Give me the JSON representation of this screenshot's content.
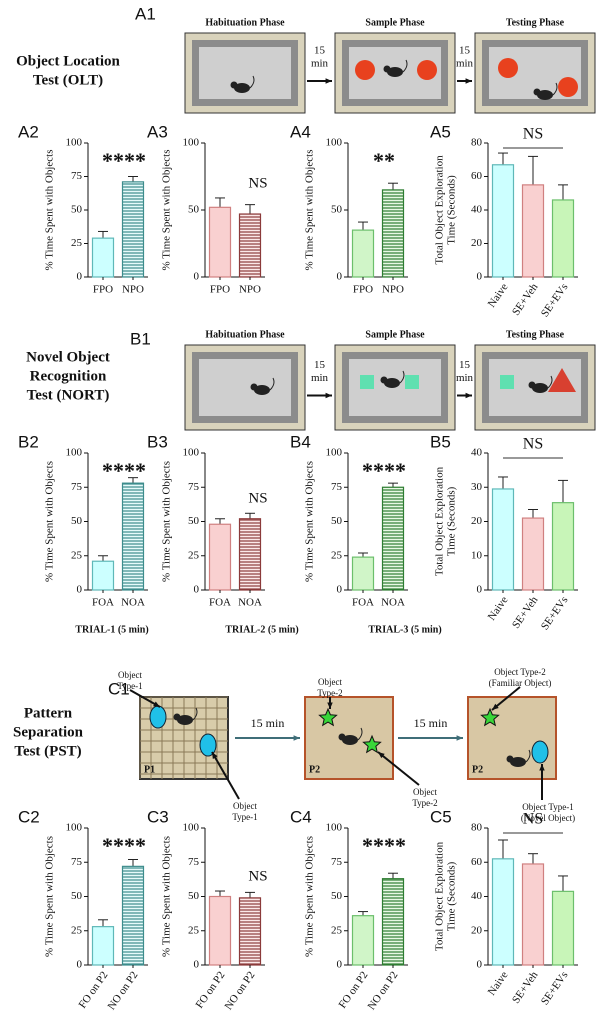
{
  "diagrams": [
    {
      "panel": "A1",
      "test_name": [
        "Object Location",
        "Test (OLT)"
      ],
      "phases": [
        "Habituation Phase",
        "Sample Phase",
        "Testing Phase"
      ],
      "intervals": [
        [
          "15",
          "min"
        ],
        [
          "15",
          "min"
        ]
      ]
    },
    {
      "panel": "B1",
      "test_name": [
        "Novel Object",
        "Recognition",
        "Test (NORT)"
      ],
      "phases": [
        "Habituation Phase",
        "Sample Phase",
        "Testing Phase"
      ],
      "intervals": [
        [
          "15",
          "min"
        ],
        [
          "15",
          "min"
        ]
      ]
    },
    {
      "panel": "C1",
      "test_name": [
        "Pattern",
        "Separation",
        "Test (PST)"
      ],
      "intervals": [
        [
          "15 min"
        ],
        [
          "15 min"
        ]
      ],
      "arena_labels": [
        "P1",
        "P2",
        "P2"
      ],
      "object_labels": [
        [
          "Object",
          "Type-1"
        ],
        [
          "Object",
          "Type-1"
        ],
        [
          "Object",
          "Type-2"
        ],
        [
          "Object",
          "Type-2"
        ],
        [
          "Object Type-2",
          "(Familiar Object)"
        ],
        [
          "Object Type-1",
          "(Novel Object)"
        ]
      ]
    }
  ],
  "trials": [
    "TRIAL-1 (5 min)",
    "TRIAL-2 (5 min)",
    "TRIAL-3 (5 min)"
  ],
  "chart_data": [
    {
      "type": "bar",
      "panel": "A2",
      "ylabel": [
        "% Time Spent with Objects"
      ],
      "categories": [
        "FPO",
        "NPO"
      ],
      "values": [
        29,
        71
      ],
      "errors": [
        5,
        4
      ],
      "colors": [
        "#ccffff",
        "#e6fafa"
      ],
      "edge_colors": [
        "#5fb8b8",
        "#3d8c8c"
      ],
      "hatch": [
        false,
        true
      ],
      "ylim": [
        0,
        100
      ],
      "yticks": [
        0,
        25,
        50,
        75,
        100
      ],
      "annotation": "****"
    },
    {
      "type": "bar",
      "panel": "A3",
      "ylabel": [
        "% Time Spent with Objects"
      ],
      "categories": [
        "FPO",
        "NPO"
      ],
      "values": [
        52,
        47
      ],
      "errors": [
        7,
        7
      ],
      "colors": [
        "#f9d0d0",
        "#fbe8e8"
      ],
      "edge_colors": [
        "#d08080",
        "#8b3a3a"
      ],
      "hatch": [
        false,
        true
      ],
      "ylim": [
        0,
        100
      ],
      "yticks": [
        0,
        50,
        100
      ],
      "annotation": "NS"
    },
    {
      "type": "bar",
      "panel": "A4",
      "ylabel": [
        "% Time Spent with Objects"
      ],
      "categories": [
        "FPO",
        "NPO"
      ],
      "values": [
        35,
        65
      ],
      "errors": [
        6,
        5
      ],
      "colors": [
        "#d0f5c8",
        "#e8f8e4"
      ],
      "edge_colors": [
        "#6cbf6c",
        "#2e7d32"
      ],
      "hatch": [
        false,
        true
      ],
      "ylim": [
        0,
        100
      ],
      "yticks": [
        0,
        50,
        100
      ],
      "annotation": "**"
    },
    {
      "type": "bar",
      "panel": "A5",
      "ylabel": [
        "Total Object Exploration",
        "Time (Seconds)"
      ],
      "categories": [
        "Naive",
        "SE+Veh",
        "SE+EVs"
      ],
      "values": [
        67,
        55,
        46
      ],
      "errors": [
        7,
        17,
        9
      ],
      "colors": [
        "#ccffff",
        "#f9d0d0",
        "#c8f5b8"
      ],
      "edge_colors": [
        "#5fb8b8",
        "#d08080",
        "#6cbf6c"
      ],
      "hatch": [
        false,
        false,
        false
      ],
      "ylim": [
        0,
        80
      ],
      "yticks": [
        0,
        20,
        40,
        60,
        80
      ],
      "annotation": "NS",
      "bracket": true
    },
    {
      "type": "bar",
      "panel": "B2",
      "ylabel": [
        "% Time Spent with Objects"
      ],
      "categories": [
        "FOA",
        "NOA"
      ],
      "values": [
        21,
        78
      ],
      "errors": [
        4,
        4
      ],
      "colors": [
        "#ccffff",
        "#e6fafa"
      ],
      "edge_colors": [
        "#5fb8b8",
        "#3d8c8c"
      ],
      "hatch": [
        false,
        true
      ],
      "ylim": [
        0,
        100
      ],
      "yticks": [
        0,
        25,
        50,
        75,
        100
      ],
      "annotation": "****"
    },
    {
      "type": "bar",
      "panel": "B3",
      "ylabel": [
        "% Time Spent with Objects"
      ],
      "categories": [
        "FOA",
        "NOA"
      ],
      "values": [
        48,
        52
      ],
      "errors": [
        4,
        4
      ],
      "colors": [
        "#f9d0d0",
        "#fbe8e8"
      ],
      "edge_colors": [
        "#d08080",
        "#8b3a3a"
      ],
      "hatch": [
        false,
        true
      ],
      "ylim": [
        0,
        100
      ],
      "yticks": [
        0,
        25,
        50,
        75,
        100
      ],
      "annotation": "NS"
    },
    {
      "type": "bar",
      "panel": "B4",
      "ylabel": [
        "% Time Spent with Objects"
      ],
      "categories": [
        "FOA",
        "NOA"
      ],
      "values": [
        24,
        75
      ],
      "errors": [
        3,
        3
      ],
      "colors": [
        "#d0f5c8",
        "#e8f8e4"
      ],
      "edge_colors": [
        "#6cbf6c",
        "#2e7d32"
      ],
      "hatch": [
        false,
        true
      ],
      "ylim": [
        0,
        100
      ],
      "yticks": [
        0,
        25,
        50,
        75,
        100
      ],
      "annotation": "****"
    },
    {
      "type": "bar",
      "panel": "B5",
      "ylabel": [
        "Total Object Exploration",
        "Time (Seconds)"
      ],
      "categories": [
        "Naive",
        "SE+Veh",
        "SE+EVs"
      ],
      "values": [
        29.5,
        21,
        25.5
      ],
      "errors": [
        3.5,
        2.5,
        6.5
      ],
      "colors": [
        "#ccffff",
        "#f9d0d0",
        "#c8f5b8"
      ],
      "edge_colors": [
        "#5fb8b8",
        "#d08080",
        "#6cbf6c"
      ],
      "hatch": [
        false,
        false,
        false
      ],
      "ylim": [
        0,
        40
      ],
      "yticks": [
        0,
        10,
        20,
        30,
        40
      ],
      "annotation": "NS",
      "bracket": true
    },
    {
      "type": "bar",
      "panel": "C2",
      "ylabel": [
        "% Time Spent with Objects"
      ],
      "categories": [
        "FO on P2",
        "NO on P2"
      ],
      "values": [
        28,
        72
      ],
      "errors": [
        5,
        5
      ],
      "colors": [
        "#ccffff",
        "#e6fafa"
      ],
      "edge_colors": [
        "#5fb8b8",
        "#3d8c8c"
      ],
      "hatch": [
        false,
        true
      ],
      "ylim": [
        0,
        100
      ],
      "yticks": [
        0,
        25,
        50,
        75,
        100
      ],
      "annotation": "****"
    },
    {
      "type": "bar",
      "panel": "C3",
      "ylabel": [
        "% Time Spent with Objects"
      ],
      "categories": [
        "FO on P2",
        "NO on P2"
      ],
      "values": [
        50,
        49
      ],
      "errors": [
        4,
        4
      ],
      "colors": [
        "#f9d0d0",
        "#fbe8e8"
      ],
      "edge_colors": [
        "#d08080",
        "#8b3a3a"
      ],
      "hatch": [
        false,
        true
      ],
      "ylim": [
        0,
        100
      ],
      "yticks": [
        0,
        25,
        50,
        75,
        100
      ],
      "annotation": "NS"
    },
    {
      "type": "bar",
      "panel": "C4",
      "ylabel": [
        "% Time Spent with Objects"
      ],
      "categories": [
        "FO on P2",
        "NO on P2"
      ],
      "values": [
        36,
        63
      ],
      "errors": [
        3,
        4
      ],
      "colors": [
        "#d0f5c8",
        "#e8f8e4"
      ],
      "edge_colors": [
        "#6cbf6c",
        "#2e7d32"
      ],
      "hatch": [
        false,
        true
      ],
      "ylim": [
        0,
        100
      ],
      "yticks": [
        0,
        25,
        50,
        75,
        100
      ],
      "annotation": "****"
    },
    {
      "type": "bar",
      "panel": "C5",
      "ylabel": [
        "Total Object Exploration",
        "Time (Seconds)"
      ],
      "categories": [
        "Naive",
        "SE+Veh",
        "SE+EVs"
      ],
      "values": [
        62,
        59,
        43
      ],
      "errors": [
        11,
        6,
        9
      ],
      "colors": [
        "#ccffff",
        "#f9d0d0",
        "#c8f5b8"
      ],
      "edge_colors": [
        "#5fb8b8",
        "#d08080",
        "#6cbf6c"
      ],
      "hatch": [
        false,
        false,
        false
      ],
      "ylim": [
        0,
        80
      ],
      "yticks": [
        0,
        20,
        40,
        60,
        80
      ],
      "annotation": "NS",
      "bracket": true
    }
  ]
}
